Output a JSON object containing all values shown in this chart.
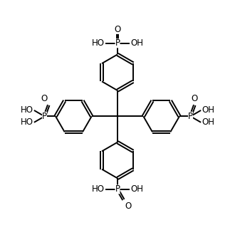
{
  "bg_color": "#ffffff",
  "line_color": "#000000",
  "line_width": 1.4,
  "font_size": 8.5,
  "fig_size": [
    3.3,
    3.3
  ],
  "dpi": 100,
  "xlim": [
    0,
    10
  ],
  "ylim": [
    0,
    10
  ]
}
